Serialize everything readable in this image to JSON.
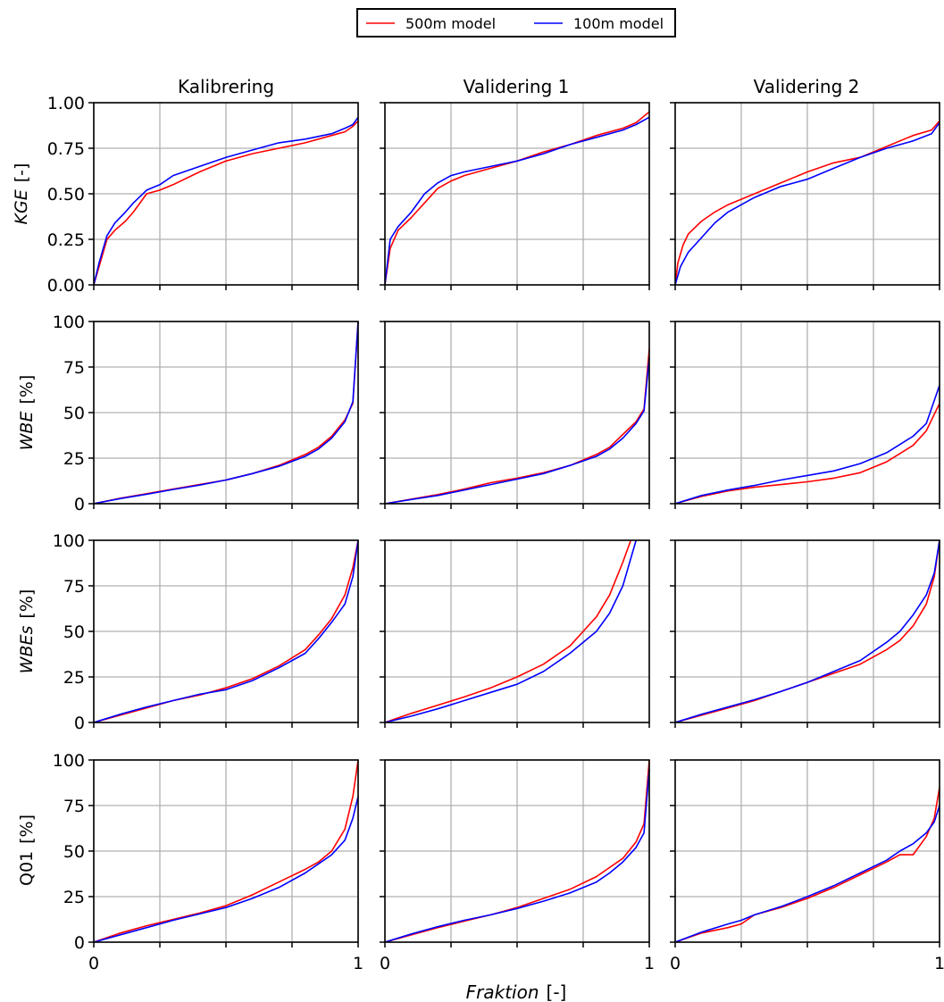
{
  "chart_data": {
    "type": "line",
    "legend": {
      "placement": "top-center",
      "entries": [
        {
          "name": "500m model",
          "color": "#ff0000"
        },
        {
          "name": "100m model",
          "color": "#0000ff"
        }
      ]
    },
    "columns": [
      "Kalibrering",
      "Validering 1",
      "Validering 2"
    ],
    "xlabel_main": "Fraktion",
    "xlabel_unit": "[-]",
    "xlim": [
      0,
      1
    ],
    "x_tick_labels": [
      "0",
      "1"
    ],
    "grid": true,
    "rows": [
      {
        "ylabel_main": "KGE",
        "ylabel_unit": "[-]",
        "ylabel_italic": true,
        "ylim": [
          0,
          1
        ],
        "y_tick_labels": [
          "0.00",
          "0.25",
          "0.50",
          "0.75",
          "1.00"
        ]
      },
      {
        "ylabel_main": "WBE",
        "ylabel_unit": "[%]",
        "ylabel_italic": true,
        "ylim": [
          0,
          100
        ],
        "y_tick_labels": [
          "0",
          "25",
          "50",
          "75",
          "100"
        ]
      },
      {
        "ylabel_main": "WBEs",
        "ylabel_unit": "[%]",
        "ylabel_italic": true,
        "ylim": [
          0,
          100
        ],
        "y_tick_labels": [
          "0",
          "25",
          "50",
          "75",
          "100"
        ]
      },
      {
        "ylabel_main": "Q01",
        "ylabel_unit": "[%]",
        "ylabel_italic": false,
        "ylim": [
          0,
          100
        ],
        "y_tick_labels": [
          "0",
          "25",
          "50",
          "75",
          "100"
        ]
      }
    ],
    "panels": [
      {
        "row": 0,
        "col": 0,
        "series": [
          {
            "name": "500m model",
            "x": [
              0,
              0.02,
              0.05,
              0.08,
              0.12,
              0.15,
              0.2,
              0.25,
              0.3,
              0.4,
              0.5,
              0.6,
              0.7,
              0.8,
              0.9,
              0.95,
              0.98,
              1.0
            ],
            "y": [
              0.0,
              0.1,
              0.25,
              0.3,
              0.35,
              0.4,
              0.5,
              0.52,
              0.55,
              0.62,
              0.68,
              0.72,
              0.75,
              0.78,
              0.82,
              0.84,
              0.87,
              0.9
            ]
          },
          {
            "name": "100m model",
            "x": [
              0,
              0.02,
              0.05,
              0.08,
              0.12,
              0.15,
              0.2,
              0.25,
              0.3,
              0.4,
              0.5,
              0.6,
              0.7,
              0.8,
              0.9,
              0.95,
              0.98,
              1.0
            ],
            "y": [
              0.0,
              0.12,
              0.27,
              0.34,
              0.4,
              0.45,
              0.52,
              0.55,
              0.6,
              0.65,
              0.7,
              0.74,
              0.78,
              0.8,
              0.83,
              0.86,
              0.88,
              0.92
            ]
          }
        ]
      },
      {
        "row": 0,
        "col": 1,
        "series": [
          {
            "name": "500m model",
            "x": [
              0,
              0.02,
              0.05,
              0.1,
              0.15,
              0.2,
              0.25,
              0.3,
              0.4,
              0.5,
              0.6,
              0.7,
              0.8,
              0.9,
              0.95,
              1.0
            ],
            "y": [
              0.0,
              0.2,
              0.3,
              0.37,
              0.45,
              0.53,
              0.57,
              0.6,
              0.64,
              0.68,
              0.73,
              0.77,
              0.82,
              0.86,
              0.89,
              0.95
            ]
          },
          {
            "name": "100m model",
            "x": [
              0,
              0.02,
              0.05,
              0.1,
              0.15,
              0.2,
              0.25,
              0.3,
              0.4,
              0.5,
              0.6,
              0.7,
              0.8,
              0.9,
              0.95,
              1.0
            ],
            "y": [
              0.0,
              0.25,
              0.32,
              0.4,
              0.5,
              0.56,
              0.6,
              0.62,
              0.65,
              0.68,
              0.72,
              0.77,
              0.81,
              0.85,
              0.88,
              0.92
            ]
          }
        ]
      },
      {
        "row": 0,
        "col": 2,
        "series": [
          {
            "name": "500m model",
            "x": [
              0,
              0.01,
              0.03,
              0.05,
              0.1,
              0.15,
              0.2,
              0.3,
              0.4,
              0.5,
              0.6,
              0.7,
              0.8,
              0.9,
              0.97,
              1.0
            ],
            "y": [
              0.0,
              0.12,
              0.22,
              0.28,
              0.35,
              0.4,
              0.44,
              0.5,
              0.56,
              0.62,
              0.67,
              0.7,
              0.76,
              0.82,
              0.85,
              0.9
            ]
          },
          {
            "name": "100m model",
            "x": [
              0,
              0.02,
              0.05,
              0.1,
              0.15,
              0.2,
              0.3,
              0.4,
              0.5,
              0.6,
              0.7,
              0.8,
              0.9,
              0.97,
              1.0
            ],
            "y": [
              0.0,
              0.1,
              0.18,
              0.26,
              0.34,
              0.4,
              0.48,
              0.54,
              0.58,
              0.64,
              0.7,
              0.75,
              0.79,
              0.83,
              0.89
            ]
          }
        ]
      },
      {
        "row": 1,
        "col": 0,
        "series": [
          {
            "name": "500m model",
            "x": [
              0,
              0.1,
              0.2,
              0.3,
              0.4,
              0.5,
              0.6,
              0.7,
              0.8,
              0.85,
              0.9,
              0.95,
              0.98,
              1.0
            ],
            "y": [
              0,
              3,
              5.5,
              8,
              10.5,
              13,
              16.5,
              21,
              27,
              31,
              37,
              46,
              55,
              100
            ]
          },
          {
            "name": "100m model",
            "x": [
              0,
              0.1,
              0.2,
              0.3,
              0.4,
              0.5,
              0.6,
              0.7,
              0.8,
              0.85,
              0.9,
              0.95,
              0.98,
              1.0
            ],
            "y": [
              0,
              2.8,
              5.2,
              7.8,
              10.2,
              13,
              16.5,
              20.5,
              26,
              30,
              36,
              45,
              56,
              100
            ]
          }
        ]
      },
      {
        "row": 1,
        "col": 1,
        "series": [
          {
            "name": "500m model",
            "x": [
              0,
              0.1,
              0.2,
              0.3,
              0.4,
              0.5,
              0.6,
              0.7,
              0.8,
              0.85,
              0.9,
              0.95,
              0.98,
              1.0
            ],
            "y": [
              0,
              2.5,
              5,
              8,
              11.5,
              14,
              17,
              21,
              27,
              31,
              38,
              45,
              52,
              85
            ]
          },
          {
            "name": "100m model",
            "x": [
              0,
              0.1,
              0.2,
              0.3,
              0.4,
              0.5,
              0.6,
              0.7,
              0.8,
              0.85,
              0.9,
              0.95,
              0.98,
              1.0
            ],
            "y": [
              0,
              2.3,
              4.5,
              7.5,
              10.5,
              13.5,
              16.5,
              21,
              26,
              30,
              36,
              44,
              51,
              80
            ]
          }
        ]
      },
      {
        "row": 1,
        "col": 2,
        "series": [
          {
            "name": "500m model",
            "x": [
              0,
              0.1,
              0.2,
              0.3,
              0.4,
              0.5,
              0.6,
              0.7,
              0.8,
              0.9,
              0.95,
              1.0
            ],
            "y": [
              0,
              4,
              7,
              9,
              10.5,
              12,
              14,
              17,
              23,
              32,
              40,
              55
            ]
          },
          {
            "name": "100m model",
            "x": [
              0,
              0.1,
              0.2,
              0.3,
              0.4,
              0.5,
              0.6,
              0.7,
              0.8,
              0.9,
              0.95,
              1.0
            ],
            "y": [
              0,
              4.5,
              7.5,
              10,
              13,
              15.5,
              18,
              22,
              28,
              37,
              44,
              65
            ]
          }
        ]
      },
      {
        "row": 2,
        "col": 0,
        "series": [
          {
            "name": "500m model",
            "x": [
              0,
              0.1,
              0.2,
              0.3,
              0.4,
              0.5,
              0.6,
              0.7,
              0.8,
              0.85,
              0.9,
              0.95,
              0.98,
              1.0
            ],
            "y": [
              0,
              4,
              8,
              12,
              15,
              19,
              24,
              31,
              40,
              48,
              57,
              70,
              85,
              100
            ]
          },
          {
            "name": "100m model",
            "x": [
              0,
              0.1,
              0.2,
              0.3,
              0.4,
              0.5,
              0.6,
              0.7,
              0.8,
              0.85,
              0.9,
              0.95,
              0.98,
              1.0
            ],
            "y": [
              0,
              4.5,
              8.5,
              12,
              15.5,
              18,
              23,
              30,
              38,
              46,
              55,
              65,
              80,
              100
            ]
          }
        ]
      },
      {
        "row": 2,
        "col": 1,
        "series": [
          {
            "name": "500m model",
            "x": [
              0,
              0.1,
              0.2,
              0.3,
              0.4,
              0.5,
              0.6,
              0.7,
              0.75,
              0.8,
              0.85,
              0.9,
              0.93
            ],
            "y": [
              0,
              5,
              9.5,
              14,
              19,
              25,
              32,
              42,
              50,
              58,
              70,
              88,
              100
            ]
          },
          {
            "name": "100m model",
            "x": [
              0,
              0.1,
              0.2,
              0.3,
              0.4,
              0.5,
              0.6,
              0.7,
              0.75,
              0.8,
              0.85,
              0.9,
              0.95
            ],
            "y": [
              0,
              3.5,
              7.5,
              12,
              16.5,
              21,
              28,
              38,
              44,
              50,
              60,
              75,
              100
            ]
          }
        ]
      },
      {
        "row": 2,
        "col": 2,
        "series": [
          {
            "name": "500m model",
            "x": [
              0,
              0.1,
              0.2,
              0.3,
              0.4,
              0.5,
              0.6,
              0.7,
              0.8,
              0.85,
              0.9,
              0.95,
              0.98,
              1.0
            ],
            "y": [
              0,
              4,
              8,
              12,
              17,
              22,
              27,
              32,
              40,
              45,
              53,
              65,
              80,
              100
            ]
          },
          {
            "name": "100m model",
            "x": [
              0,
              0.1,
              0.2,
              0.3,
              0.4,
              0.5,
              0.6,
              0.7,
              0.8,
              0.85,
              0.9,
              0.95,
              0.98,
              1.0
            ],
            "y": [
              0,
              4.5,
              8.5,
              12.5,
              17,
              22,
              28,
              34,
              44,
              50,
              59,
              70,
              82,
              100
            ]
          }
        ]
      },
      {
        "row": 3,
        "col": 0,
        "series": [
          {
            "name": "500m model",
            "x": [
              0,
              0.1,
              0.2,
              0.3,
              0.4,
              0.5,
              0.6,
              0.7,
              0.8,
              0.85,
              0.9,
              0.95,
              0.98,
              1.0
            ],
            "y": [
              0,
              5,
              9,
              12.5,
              16,
              20,
              26,
              33,
              40,
              44,
              50,
              62,
              80,
              100
            ]
          },
          {
            "name": "100m model",
            "x": [
              0,
              0.1,
              0.2,
              0.3,
              0.4,
              0.5,
              0.6,
              0.7,
              0.8,
              0.85,
              0.9,
              0.95,
              0.98,
              1.0
            ],
            "y": [
              0,
              4,
              8,
              12,
              15.5,
              19,
              24,
              30,
              38,
              43,
              48,
              56,
              68,
              80
            ]
          }
        ]
      },
      {
        "row": 3,
        "col": 1,
        "series": [
          {
            "name": "500m model",
            "x": [
              0,
              0.1,
              0.2,
              0.3,
              0.4,
              0.5,
              0.6,
              0.7,
              0.8,
              0.85,
              0.9,
              0.95,
              0.98,
              1.0
            ],
            "y": [
              0,
              4,
              8,
              11.5,
              15,
              19,
              24,
              29,
              36,
              41,
              46,
              55,
              65,
              100
            ]
          },
          {
            "name": "100m model",
            "x": [
              0,
              0.1,
              0.2,
              0.3,
              0.4,
              0.5,
              0.6,
              0.7,
              0.8,
              0.85,
              0.9,
              0.95,
              0.98,
              1.0
            ],
            "y": [
              0,
              4.5,
              8.5,
              12,
              15,
              18.5,
              22.5,
              27,
              33,
              38,
              44,
              52,
              60,
              95
            ]
          }
        ]
      },
      {
        "row": 3,
        "col": 2,
        "series": [
          {
            "name": "500m model",
            "x": [
              0,
              0.1,
              0.2,
              0.25,
              0.3,
              0.4,
              0.5,
              0.6,
              0.7,
              0.8,
              0.85,
              0.9,
              0.95,
              0.98,
              1.0
            ],
            "y": [
              0,
              5,
              8,
              10,
              15,
              19,
              24,
              30,
              37,
              44,
              48,
              48,
              58,
              68,
              85
            ]
          },
          {
            "name": "100m model",
            "x": [
              0,
              0.1,
              0.2,
              0.25,
              0.3,
              0.4,
              0.5,
              0.6,
              0.7,
              0.8,
              0.85,
              0.9,
              0.95,
              0.98,
              1.0
            ],
            "y": [
              0,
              5.5,
              10,
              12,
              15,
              19.5,
              25,
              31,
              38,
              45,
              50,
              54,
              60,
              66,
              75
            ]
          }
        ]
      }
    ]
  }
}
